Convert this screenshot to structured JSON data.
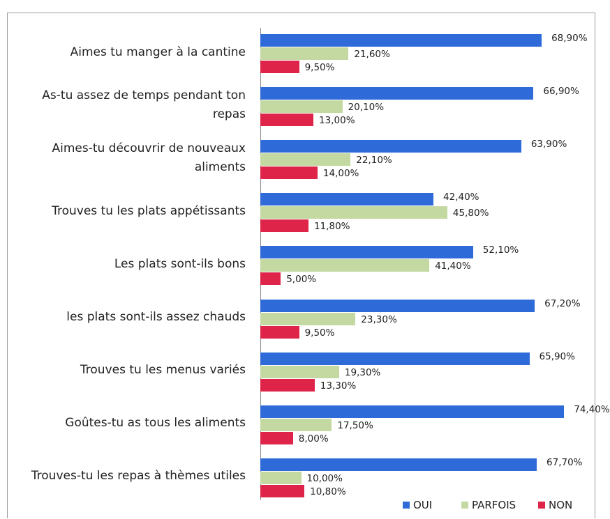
{
  "chart_data": {
    "type": "bar",
    "orientation": "horizontal",
    "legend": "bottom-right",
    "categories": [
      "Aimes tu manger à la cantine",
      "As-tu assez de temps pendant ton repas",
      "Aimes-tu découvrir de nouveaux aliments",
      "Trouves tu les plats appétissants",
      "Les plats sont-ils bons",
      "les plats sont-ils assez chauds",
      "Trouves tu les menus variés",
      "Goûtes-tu as tous les aliments",
      "Trouves-tu les repas à thèmes utiles"
    ],
    "series": [
      {
        "name": "OUI",
        "color": "#2f6bd8",
        "values": [
          68.9,
          66.9,
          63.9,
          42.4,
          52.1,
          67.2,
          65.9,
          74.4,
          67.7
        ],
        "value_labels": [
          "68,90%",
          "66,90%",
          "63,90%",
          "42,40%",
          "52,10%",
          "67,20%",
          "65,90%",
          "74,40%",
          "67,70%"
        ]
      },
      {
        "name": "PARFOIS",
        "color": "#c4d9a2",
        "values": [
          21.6,
          20.1,
          22.1,
          45.8,
          41.4,
          23.3,
          19.3,
          17.5,
          10.0
        ],
        "value_labels": [
          "21,60%",
          "20,10%",
          "22,10%",
          "45,80%",
          "41,40%",
          "23,30%",
          "19,30%",
          "17,50%",
          "10,00%"
        ]
      },
      {
        "name": "NON",
        "color": "#de2449",
        "values": [
          9.5,
          13.0,
          14.0,
          11.8,
          5.0,
          9.5,
          13.3,
          8.0,
          10.8
        ],
        "value_labels": [
          "9,50%",
          "13,00%",
          "14,00%",
          "11,80%",
          "5,00%",
          "9,50%",
          "13,30%",
          "8,00%",
          "10,80%"
        ]
      }
    ]
  }
}
